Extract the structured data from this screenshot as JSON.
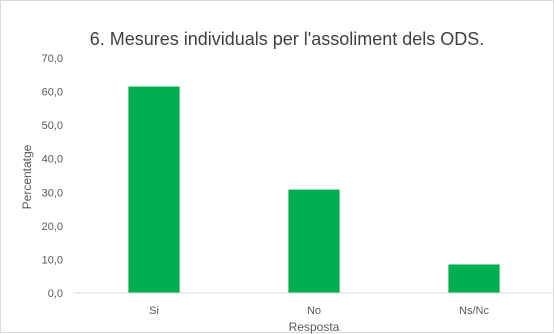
{
  "chart_data": {
    "type": "bar",
    "title": "6. Mesures individuals per l'assoliment dels ODS.",
    "xlabel": "Resposta",
    "ylabel": "Percentatge",
    "categories": [
      "Si",
      "No",
      "Ns/Nc"
    ],
    "values": [
      61.5,
      30.8,
      8.5
    ],
    "ylim": [
      0,
      70
    ],
    "yticks": [
      "0,0",
      "10,0",
      "20,0",
      "30,0",
      "40,0",
      "50,0",
      "60,0",
      "70,0"
    ],
    "grid": false,
    "legend": "none",
    "bar_color": "#00b050",
    "axis_color": "#d9d9d9"
  }
}
